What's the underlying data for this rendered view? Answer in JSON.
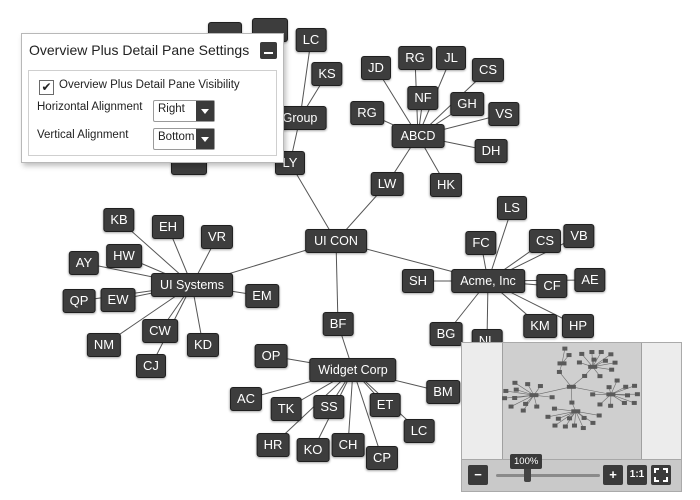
{
  "graph": {
    "nodes": [
      {
        "id": "uicon",
        "label": "UI CON",
        "hub": true
      },
      {
        "id": "uisys",
        "label": "UI Systems",
        "hub": true
      },
      {
        "id": "acme",
        "label": "Acme, Inc",
        "hub": true
      },
      {
        "id": "widget",
        "label": "Widget Corp",
        "hub": true
      },
      {
        "id": "abcd",
        "label": "ABCD",
        "hub": true
      },
      {
        "id": "group",
        "label": "Group",
        "hub": true
      },
      {
        "id": "ly",
        "label": "LY"
      },
      {
        "id": "lw",
        "label": "LW"
      },
      {
        "id": "bf",
        "label": "BF"
      },
      {
        "id": "kb",
        "label": "KB"
      },
      {
        "id": "eh",
        "label": "EH"
      },
      {
        "id": "vr",
        "label": "VR"
      },
      {
        "id": "hw",
        "label": "HW"
      },
      {
        "id": "ay",
        "label": "AY"
      },
      {
        "id": "ew",
        "label": "EW"
      },
      {
        "id": "qp",
        "label": "QP"
      },
      {
        "id": "em",
        "label": "EM"
      },
      {
        "id": "cw",
        "label": "CW"
      },
      {
        "id": "kd",
        "label": "KD"
      },
      {
        "id": "nm",
        "label": "NM"
      },
      {
        "id": "cj",
        "label": "CJ"
      },
      {
        "id": "jd",
        "label": "JD"
      },
      {
        "id": "rg1",
        "label": "RG"
      },
      {
        "id": "jl",
        "label": "JL"
      },
      {
        "id": "cs1",
        "label": "CS"
      },
      {
        "id": "nf",
        "label": "NF"
      },
      {
        "id": "gh",
        "label": "GH"
      },
      {
        "id": "rg2",
        "label": "RG"
      },
      {
        "id": "vs",
        "label": "VS"
      },
      {
        "id": "dh",
        "label": "DH"
      },
      {
        "id": "hk",
        "label": "HK"
      },
      {
        "id": "lc1",
        "label": "LC"
      },
      {
        "id": "ks",
        "label": "KS"
      },
      {
        "id": "ls",
        "label": "LS"
      },
      {
        "id": "fc",
        "label": "FC"
      },
      {
        "id": "cs2",
        "label": "CS"
      },
      {
        "id": "vb",
        "label": "VB"
      },
      {
        "id": "sh",
        "label": "SH"
      },
      {
        "id": "ae",
        "label": "AE"
      },
      {
        "id": "cf",
        "label": "CF"
      },
      {
        "id": "bg",
        "label": "BG"
      },
      {
        "id": "km",
        "label": "KM"
      },
      {
        "id": "hp",
        "label": "HP"
      },
      {
        "id": "nl",
        "label": "NL"
      },
      {
        "id": "op",
        "label": "OP"
      },
      {
        "id": "bm",
        "label": "BM"
      },
      {
        "id": "ac",
        "label": "AC"
      },
      {
        "id": "tk",
        "label": "TK"
      },
      {
        "id": "ss",
        "label": "SS"
      },
      {
        "id": "et",
        "label": "ET"
      },
      {
        "id": "lc2",
        "label": "LC"
      },
      {
        "id": "hr",
        "label": "HR"
      },
      {
        "id": "ko",
        "label": "KO"
      },
      {
        "id": "ch",
        "label": "CH"
      },
      {
        "id": "cp",
        "label": "CP"
      }
    ],
    "edges": [
      [
        "uicon",
        "uisys"
      ],
      [
        "uicon",
        "acme"
      ],
      [
        "uicon",
        "bf"
      ],
      [
        "uicon",
        "lw"
      ],
      [
        "uicon",
        "ly"
      ],
      [
        "bf",
        "widget"
      ],
      [
        "lw",
        "abcd"
      ],
      [
        "ly",
        "group"
      ],
      [
        "uisys",
        "kb"
      ],
      [
        "uisys",
        "eh"
      ],
      [
        "uisys",
        "vr"
      ],
      [
        "uisys",
        "hw"
      ],
      [
        "uisys",
        "ay"
      ],
      [
        "uisys",
        "ew"
      ],
      [
        "uisys",
        "qp"
      ],
      [
        "uisys",
        "em"
      ],
      [
        "uisys",
        "cw"
      ],
      [
        "uisys",
        "kd"
      ],
      [
        "uisys",
        "nm"
      ],
      [
        "uisys",
        "cj"
      ],
      [
        "abcd",
        "jd"
      ],
      [
        "abcd",
        "rg1"
      ],
      [
        "abcd",
        "jl"
      ],
      [
        "abcd",
        "cs1"
      ],
      [
        "abcd",
        "nf"
      ],
      [
        "abcd",
        "gh"
      ],
      [
        "abcd",
        "rg2"
      ],
      [
        "abcd",
        "vs"
      ],
      [
        "abcd",
        "dh"
      ],
      [
        "abcd",
        "hk"
      ],
      [
        "group",
        "lc1"
      ],
      [
        "group",
        "ks"
      ],
      [
        "acme",
        "ls"
      ],
      [
        "acme",
        "fc"
      ],
      [
        "acme",
        "cs2"
      ],
      [
        "acme",
        "vb"
      ],
      [
        "acme",
        "sh"
      ],
      [
        "acme",
        "ae"
      ],
      [
        "acme",
        "cf"
      ],
      [
        "acme",
        "bg"
      ],
      [
        "acme",
        "km"
      ],
      [
        "acme",
        "hp"
      ],
      [
        "acme",
        "nl"
      ],
      [
        "widget",
        "op"
      ],
      [
        "widget",
        "bm"
      ],
      [
        "widget",
        "ac"
      ],
      [
        "widget",
        "tk"
      ],
      [
        "widget",
        "ss"
      ],
      [
        "widget",
        "et"
      ],
      [
        "widget",
        "lc2"
      ],
      [
        "widget",
        "hr"
      ],
      [
        "widget",
        "ko"
      ],
      [
        "widget",
        "ch"
      ],
      [
        "widget",
        "cp"
      ]
    ]
  },
  "settings": {
    "title": "Overview Plus Detail Pane Settings",
    "visibility_label": "Overview Plus Detail Pane Visibility",
    "visibility_checked": true,
    "horizontal_label": "Horizontal Alignment",
    "horizontal_value": "Right",
    "vertical_label": "Vertical Alignment",
    "vertical_value": "Bottom"
  },
  "overview": {
    "zoom_label": "100%",
    "zoom_in": "+",
    "zoom_out": "−",
    "actual_size": "1:1",
    "fit_icon": "expand-icon"
  },
  "colors": {
    "node_fill": "#3d3d3d",
    "edge": "#555555",
    "pane_bg": "#ececec"
  }
}
